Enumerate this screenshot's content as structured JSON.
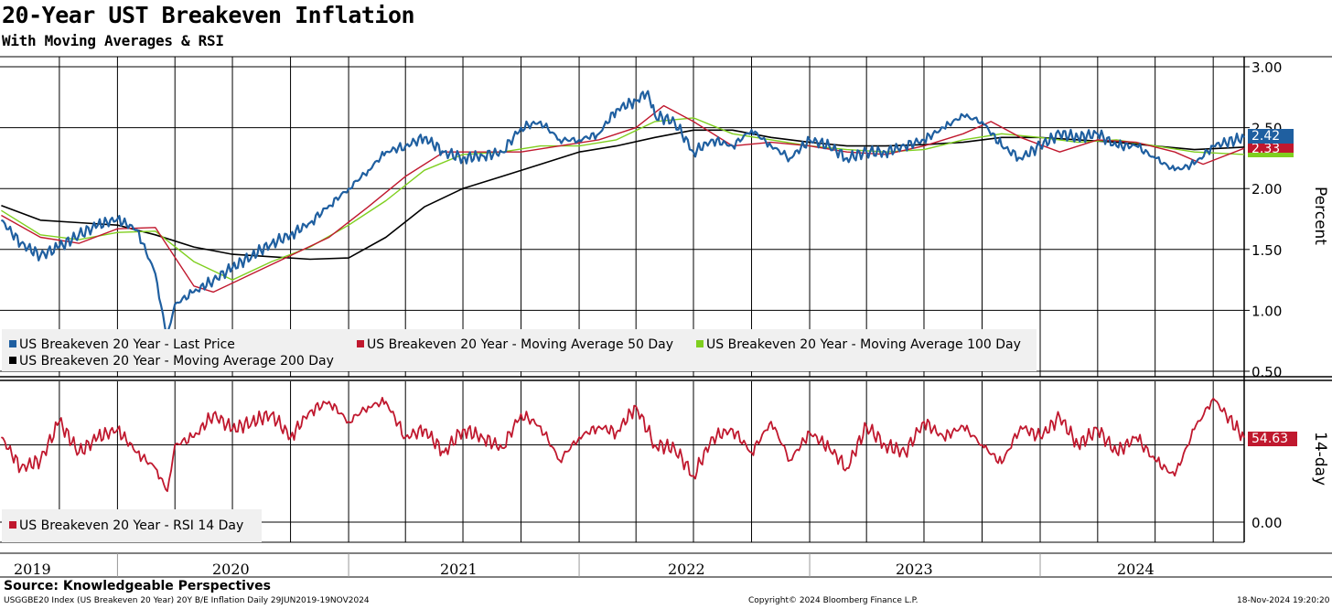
{
  "title": "20-Year UST Breakeven Inflation",
  "subtitle": "With Moving Averages & RSI",
  "source": "Source: Knowledgeable Perspectives",
  "footer": {
    "left": "USGGBE20 Index (US Breakeven 20 Year) 20Y B/E Inflation  Daily 29JUN2019-19NOV2024",
    "center": "Copyright© 2024 Bloomberg Finance L.P.",
    "right": "18-Nov-2024 19:20:20"
  },
  "colors": {
    "last": "#1f5fa0",
    "ma50": "#c0182e",
    "ma100": "#7fcf1f",
    "ma200": "#000000",
    "rsi": "#c0182e"
  },
  "chart_data": [
    {
      "type": "line",
      "ylabel": "Percent",
      "ylim": [
        0.5,
        3.0
      ],
      "yticks": [
        "3.00",
        "2.50",
        "2.00",
        "1.50",
        "1.00",
        "0.50"
      ],
      "x_range": [
        "2019-06-29",
        "2024-11-19"
      ],
      "x_tick_labels": [
        "2019",
        "2020",
        "2021",
        "2022",
        "2023",
        "2024"
      ],
      "grid": true,
      "legend_position": "bottom-left",
      "last_values": {
        "last_price": "2.42",
        "ma50": "2.33"
      },
      "series": [
        {
          "name": "US Breakeven 20 Year - Last Price",
          "color_key": "last",
          "x": [
            "2019-07-01",
            "2019-08-01",
            "2019-09-01",
            "2019-10-01",
            "2019-11-01",
            "2019-12-01",
            "2020-01-01",
            "2020-02-01",
            "2020-03-01",
            "2020-03-19",
            "2020-04-01",
            "2020-05-01",
            "2020-06-01",
            "2020-07-01",
            "2020-08-01",
            "2020-09-01",
            "2020-10-01",
            "2020-11-01",
            "2020-12-01",
            "2021-01-01",
            "2021-02-01",
            "2021-03-01",
            "2021-04-01",
            "2021-05-01",
            "2021-06-01",
            "2021-07-01",
            "2021-08-01",
            "2021-09-01",
            "2021-10-01",
            "2021-11-01",
            "2021-12-01",
            "2022-01-01",
            "2022-02-01",
            "2022-03-01",
            "2022-04-01",
            "2022-04-20",
            "2022-05-01",
            "2022-06-01",
            "2022-07-01",
            "2022-08-01",
            "2022-09-01",
            "2022-10-01",
            "2022-11-01",
            "2022-12-01",
            "2023-01-01",
            "2023-02-01",
            "2023-03-01",
            "2023-04-01",
            "2023-05-01",
            "2023-06-01",
            "2023-07-01",
            "2023-08-01",
            "2023-09-01",
            "2023-10-01",
            "2023-11-01",
            "2023-12-01",
            "2024-01-01",
            "2024-02-01",
            "2024-03-01",
            "2024-04-01",
            "2024-05-01",
            "2024-06-01",
            "2024-07-01",
            "2024-08-01",
            "2024-09-01",
            "2024-10-01",
            "2024-11-19"
          ],
          "values": [
            1.74,
            1.55,
            1.45,
            1.52,
            1.62,
            1.7,
            1.75,
            1.66,
            1.3,
            0.78,
            1.05,
            1.15,
            1.25,
            1.35,
            1.45,
            1.55,
            1.62,
            1.72,
            1.86,
            2.0,
            2.15,
            2.3,
            2.35,
            2.42,
            2.3,
            2.25,
            2.27,
            2.3,
            2.5,
            2.55,
            2.4,
            2.4,
            2.45,
            2.65,
            2.72,
            2.8,
            2.6,
            2.55,
            2.3,
            2.4,
            2.35,
            2.48,
            2.35,
            2.25,
            2.4,
            2.35,
            2.25,
            2.3,
            2.3,
            2.35,
            2.4,
            2.5,
            2.6,
            2.55,
            2.35,
            2.25,
            2.35,
            2.45,
            2.42,
            2.45,
            2.35,
            2.35,
            2.25,
            2.15,
            2.2,
            2.35,
            2.42
          ]
        },
        {
          "name": "US Breakeven 20 Year - Moving Average 50 Day",
          "color_key": "ma50",
          "x": [
            "2019-07-01",
            "2019-09-01",
            "2019-11-01",
            "2020-01-01",
            "2020-03-01",
            "2020-05-01",
            "2020-06-01",
            "2020-08-01",
            "2020-10-01",
            "2020-12-01",
            "2021-02-01",
            "2021-04-01",
            "2021-06-01",
            "2021-08-01",
            "2021-10-01",
            "2021-12-01",
            "2022-02-01",
            "2022-04-01",
            "2022-05-15",
            "2022-07-01",
            "2022-09-01",
            "2022-11-01",
            "2023-01-01",
            "2023-03-01",
            "2023-05-01",
            "2023-07-01",
            "2023-09-01",
            "2023-10-15",
            "2023-12-01",
            "2024-02-01",
            "2024-04-01",
            "2024-06-01",
            "2024-08-01",
            "2024-09-15",
            "2024-11-19"
          ],
          "values": [
            1.78,
            1.6,
            1.55,
            1.67,
            1.68,
            1.2,
            1.15,
            1.3,
            1.45,
            1.6,
            1.85,
            2.1,
            2.3,
            2.3,
            2.3,
            2.35,
            2.4,
            2.5,
            2.68,
            2.55,
            2.35,
            2.38,
            2.35,
            2.3,
            2.28,
            2.35,
            2.45,
            2.55,
            2.42,
            2.3,
            2.4,
            2.38,
            2.3,
            2.2,
            2.33
          ]
        },
        {
          "name": "US Breakeven 20 Year - Moving Average 100 Day",
          "color_key": "ma100",
          "x": [
            "2019-07-01",
            "2019-09-01",
            "2019-11-01",
            "2020-01-01",
            "2020-03-01",
            "2020-05-01",
            "2020-07-01",
            "2020-09-01",
            "2020-11-01",
            "2021-01-01",
            "2021-03-01",
            "2021-05-01",
            "2021-07-01",
            "2021-09-01",
            "2021-11-01",
            "2022-01-01",
            "2022-03-01",
            "2022-05-01",
            "2022-07-01",
            "2022-09-01",
            "2022-11-01",
            "2023-01-01",
            "2023-03-01",
            "2023-05-01",
            "2023-07-01",
            "2023-09-01",
            "2023-11-01",
            "2024-01-01",
            "2024-03-01",
            "2024-05-01",
            "2024-07-01",
            "2024-09-01",
            "2024-11-19"
          ],
          "values": [
            1.82,
            1.62,
            1.58,
            1.64,
            1.65,
            1.4,
            1.25,
            1.4,
            1.52,
            1.7,
            1.9,
            2.15,
            2.28,
            2.3,
            2.35,
            2.35,
            2.4,
            2.55,
            2.58,
            2.45,
            2.4,
            2.35,
            2.32,
            2.3,
            2.32,
            2.4,
            2.45,
            2.42,
            2.38,
            2.4,
            2.35,
            2.3,
            2.28
          ]
        },
        {
          "name": "US Breakeven 20 Year - Moving Average 200 Day",
          "color_key": "ma200",
          "x": [
            "2019-07-01",
            "2019-09-01",
            "2019-11-01",
            "2020-01-01",
            "2020-03-01",
            "2020-05-01",
            "2020-07-01",
            "2020-09-01",
            "2020-11-01",
            "2021-01-01",
            "2021-03-01",
            "2021-05-01",
            "2021-07-01",
            "2021-09-01",
            "2021-11-01",
            "2022-01-01",
            "2022-03-01",
            "2022-05-01",
            "2022-07-01",
            "2022-09-01",
            "2022-11-01",
            "2023-01-01",
            "2023-03-01",
            "2023-05-01",
            "2023-07-01",
            "2023-09-01",
            "2023-11-01",
            "2024-01-01",
            "2024-03-01",
            "2024-05-01",
            "2024-07-01",
            "2024-09-01",
            "2024-11-19"
          ],
          "values": [
            1.86,
            1.74,
            1.72,
            1.7,
            1.62,
            1.52,
            1.46,
            1.44,
            1.42,
            1.43,
            1.6,
            1.85,
            2.0,
            2.1,
            2.2,
            2.3,
            2.35,
            2.42,
            2.48,
            2.48,
            2.42,
            2.38,
            2.35,
            2.35,
            2.36,
            2.38,
            2.42,
            2.42,
            2.4,
            2.38,
            2.35,
            2.32,
            2.34
          ]
        }
      ]
    },
    {
      "type": "line",
      "ylabel": "14-day",
      "yticks": [
        "0.00"
      ],
      "last_value": "54.63",
      "grid": true,
      "legend_position": "bottom-left",
      "series": [
        {
          "name": "US Breakeven 20 Year - RSI 14 Day",
          "color_key": "rsi",
          "x": [
            "2019-07-01",
            "2019-08-01",
            "2019-09-01",
            "2019-10-01",
            "2019-11-01",
            "2019-12-01",
            "2020-01-01",
            "2020-02-01",
            "2020-03-01",
            "2020-03-20",
            "2020-04-01",
            "2020-05-01",
            "2020-06-01",
            "2020-07-01",
            "2020-08-01",
            "2020-09-01",
            "2020-10-01",
            "2020-11-01",
            "2020-12-01",
            "2021-01-01",
            "2021-02-01",
            "2021-03-01",
            "2021-04-01",
            "2021-05-01",
            "2021-06-01",
            "2021-07-01",
            "2021-08-01",
            "2021-09-01",
            "2021-10-01",
            "2021-11-01",
            "2021-12-01",
            "2022-01-01",
            "2022-02-01",
            "2022-03-01",
            "2022-04-01",
            "2022-05-01",
            "2022-06-01",
            "2022-07-01",
            "2022-08-01",
            "2022-09-01",
            "2022-10-01",
            "2022-11-01",
            "2022-12-01",
            "2023-01-01",
            "2023-02-01",
            "2023-03-01",
            "2023-04-01",
            "2023-05-01",
            "2023-06-01",
            "2023-07-01",
            "2023-08-01",
            "2023-09-01",
            "2023-10-01",
            "2023-11-01",
            "2023-12-01",
            "2024-01-01",
            "2024-02-01",
            "2024-03-01",
            "2024-04-01",
            "2024-05-01",
            "2024-06-01",
            "2024-07-01",
            "2024-08-01",
            "2024-09-01",
            "2024-10-01",
            "2024-11-19"
          ],
          "values": [
            55,
            35,
            40,
            65,
            45,
            55,
            60,
            45,
            35,
            20,
            50,
            55,
            70,
            60,
            65,
            70,
            55,
            72,
            78,
            65,
            75,
            78,
            55,
            60,
            45,
            60,
            55,
            48,
            70,
            62,
            40,
            55,
            62,
            58,
            75,
            50,
            48,
            30,
            55,
            60,
            45,
            65,
            40,
            58,
            48,
            35,
            62,
            50,
            45,
            65,
            55,
            62,
            50,
            38,
            62,
            55,
            68,
            50,
            60,
            45,
            55,
            40,
            30,
            60,
            80,
            54.63
          ]
        }
      ]
    }
  ]
}
